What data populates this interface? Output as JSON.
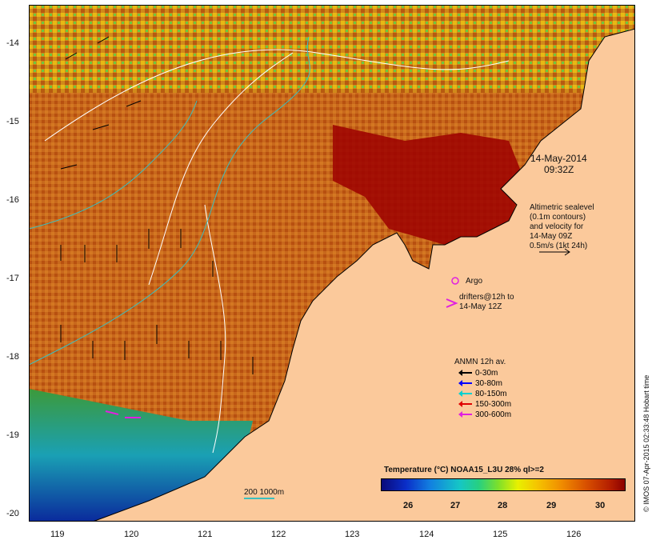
{
  "map": {
    "lat_labels": [
      "-14",
      "-15",
      "-16",
      "-17",
      "-18",
      "-19",
      "-20"
    ],
    "lon_labels": [
      "119",
      "120",
      "121",
      "122",
      "123",
      "124",
      "125",
      "126"
    ],
    "lat_range": [
      -20.1,
      -13.7
    ],
    "lon_range": [
      118.6,
      126.6
    ],
    "colors": {
      "land": "#fbc99b",
      "sea_warm": "#c45a14",
      "sea_hot": "#a00000",
      "sea_cool": "#1450c8",
      "contour": "#ffffff",
      "isobath": "#3bbfbf"
    }
  },
  "annotation": {
    "date": "14-May-2014",
    "time": "09:32Z",
    "altimetry_lines": [
      "Altimetric sealevel",
      "(0.1m contours)",
      "and velocity for",
      "14-May 09Z",
      "0.5m/s (1kt 24h)"
    ]
  },
  "argo": {
    "label": "Argo",
    "color": "#e020e0"
  },
  "drifters": {
    "lines": [
      "drifters@12h to",
      "14-May 12Z"
    ],
    "color": "#e020e0"
  },
  "anmn_legend": {
    "title": "ANMN 12h av.",
    "items": [
      {
        "label": "0-30m",
        "color": "#000000"
      },
      {
        "label": "30-80m",
        "color": "#0000ff"
      },
      {
        "label": "80-150m",
        "color": "#00d0d0"
      },
      {
        "label": "150-300m",
        "color": "#e00000"
      },
      {
        "label": "300-600m",
        "color": "#e020e0"
      }
    ]
  },
  "colorbar": {
    "title": "Temperature (°C) NOAA15_L3U 28% ql>=2",
    "ticks": [
      "26",
      "27",
      "28",
      "29",
      "30"
    ]
  },
  "isobath_label": "200  1000m",
  "credit": "© IMOS 07-Apr-2015 02:33:48 Hobart time"
}
